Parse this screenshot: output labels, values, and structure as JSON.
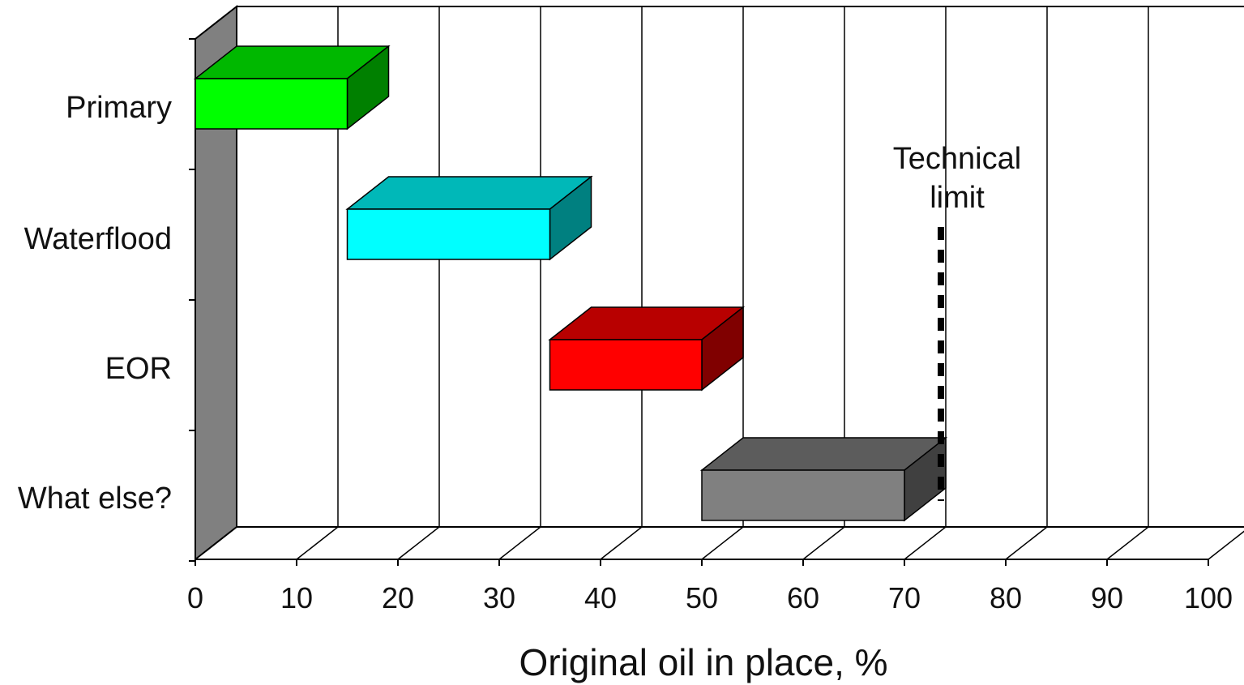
{
  "chart_data": {
    "type": "bar",
    "orientation": "horizontal",
    "style": "3d-floating",
    "categories": [
      "Primary",
      "Waterflood",
      "EOR",
      "What else?"
    ],
    "series": [
      {
        "ranges": [
          [
            0,
            15
          ],
          [
            15,
            35
          ],
          [
            35,
            50
          ],
          [
            50,
            70
          ]
        ],
        "colors": [
          "#00ff00",
          "#00ffff",
          "#ff0000",
          "#808080"
        ]
      }
    ],
    "xlabel": "Original oil in place, %",
    "xlim": [
      0,
      100
    ],
    "xticks": [
      "0",
      "10",
      "20",
      "30",
      "40",
      "50",
      "60",
      "70",
      "80",
      "90",
      "100"
    ],
    "grid": "vertical",
    "annotations": [
      {
        "text_line1": "Technical",
        "text_line2": "limit",
        "x": 76,
        "style": "dashed-vertical-line"
      }
    ]
  }
}
